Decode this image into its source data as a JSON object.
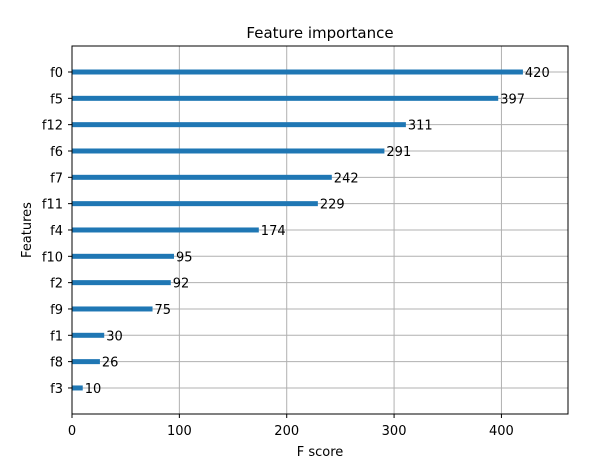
{
  "chart_data": {
    "type": "bar",
    "orientation": "horizontal",
    "title": "Feature importance",
    "xlabel": "F score",
    "ylabel": "Features",
    "categories": [
      "f0",
      "f5",
      "f12",
      "f6",
      "f7",
      "f11",
      "f4",
      "f10",
      "f2",
      "f9",
      "f1",
      "f8",
      "f3"
    ],
    "values": [
      420,
      397,
      311,
      291,
      242,
      229,
      174,
      95,
      92,
      75,
      30,
      26,
      10
    ],
    "xlim": [
      0,
      462
    ],
    "xticks": [
      0,
      100,
      200,
      300,
      400
    ],
    "grid": true,
    "bar_color": "#1f77b4",
    "data_labels": true
  }
}
